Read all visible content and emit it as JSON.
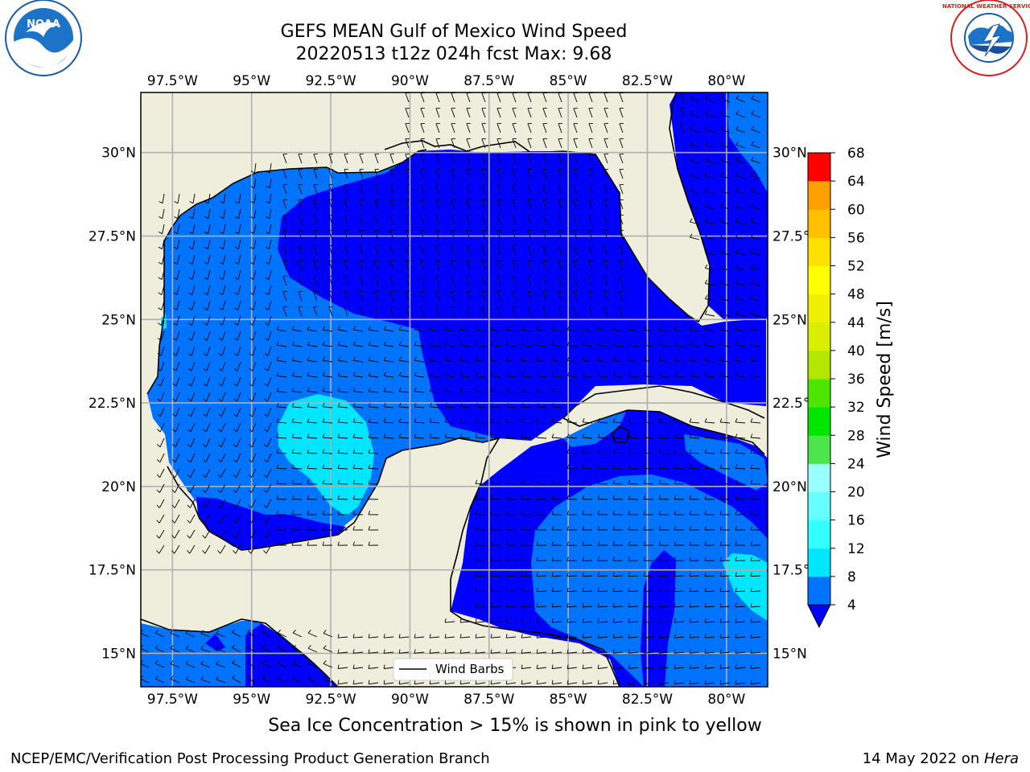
{
  "title": {
    "line1": "GEFS MEAN Gulf of Mexico Wind Speed",
    "line2": "20220513 t12z 024h fcst   Max: 9.68"
  },
  "footer": {
    "note": "Sea Ice Concentration > 15% is shown in pink to yellow",
    "credit": "NCEP/EMC/Verification Post Processing Product Generation Branch",
    "date_prefix": "14 May 2022 on ",
    "machine": "Hera"
  },
  "logos": {
    "left": "NOAA",
    "right": "NATIONAL WEATHER SERVICE"
  },
  "legend": {
    "label": "Wind Barbs"
  },
  "colorbar": {
    "label": "Wind Speed [m/s]",
    "ticks": [
      "4",
      "8",
      "12",
      "16",
      "20",
      "24",
      "28",
      "32",
      "36",
      "40",
      "44",
      "48",
      "52",
      "56",
      "60",
      "64",
      "68"
    ],
    "colors": [
      "#0073ff",
      "#00e6ff",
      "#33ffff",
      "#66ffff",
      "#99ffff",
      "#4ce64c",
      "#00e600",
      "#4de600",
      "#b3e600",
      "#d9ee00",
      "#eef000",
      "#ffff00",
      "#ffe100",
      "#ffc000",
      "#ff9f00",
      "#ff7f00",
      "#ff5a00",
      "#ff2f00"
    ],
    "extend_color": "#0000ff"
  },
  "chart_data": {
    "type": "heatmap",
    "variable": "wind speed",
    "units": "m/s",
    "max_value": 9.68,
    "lon_range": [
      -98.5,
      -78.7
    ],
    "lat_range": [
      14.0,
      31.8
    ],
    "x_ticks": [
      "97.5°W",
      "95°W",
      "92.5°W",
      "90°W",
      "87.5°W",
      "85°W",
      "82.5°W",
      "80°W"
    ],
    "x_tick_values": [
      -97.5,
      -95,
      -92.5,
      -90,
      -87.5,
      -85,
      -82.5,
      -80
    ],
    "y_ticks": [
      "15°N",
      "17.5°N",
      "20°N",
      "22.5°N",
      "25°N",
      "27.5°N",
      "30°N"
    ],
    "y_tick_values": [
      15,
      17.5,
      20,
      22.5,
      25,
      27.5,
      30
    ],
    "grid": true,
    "colors": {
      "ocean_extend": "#0000ff",
      "band_4_8": "#0073ff",
      "band_8_12": "#00e6ff",
      "band_12_16": "#33ffff",
      "land": "#efeedc"
    },
    "regions": [
      {
        "name": "western-gulf",
        "range": "4-8"
      },
      {
        "name": "central-eastern-gulf",
        "range": "<4"
      },
      {
        "name": "bay-of-campeche-core",
        "range": "8-12"
      },
      {
        "name": "caribbean-central",
        "range": "4-8"
      },
      {
        "name": "caribbean-east",
        "range": "8-12"
      },
      {
        "name": "western-caribbean",
        "range": "<4"
      }
    ]
  }
}
